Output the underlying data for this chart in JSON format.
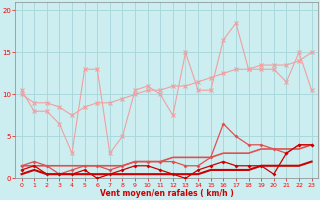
{
  "x": [
    0,
    1,
    2,
    3,
    4,
    5,
    6,
    7,
    8,
    9,
    10,
    11,
    12,
    13,
    14,
    15,
    16,
    17,
    18,
    19,
    20,
    21,
    22,
    23
  ],
  "line1": [
    10.5,
    8.0,
    8.0,
    6.5,
    3.0,
    13.0,
    13.0,
    3.0,
    5.0,
    10.5,
    11.0,
    10.0,
    7.5,
    15.0,
    10.5,
    10.5,
    16.5,
    18.5,
    13.0,
    13.0,
    13.0,
    11.5,
    15.0,
    10.5
  ],
  "line2": [
    10.0,
    9.0,
    9.0,
    8.5,
    7.5,
    8.5,
    9.0,
    9.0,
    9.5,
    10.0,
    10.5,
    10.5,
    11.0,
    11.0,
    11.5,
    12.0,
    12.5,
    13.0,
    13.0,
    13.5,
    13.5,
    13.5,
    14.0,
    15.0
  ],
  "line3": [
    1.5,
    2.0,
    1.5,
    0.5,
    1.0,
    1.5,
    1.5,
    1.0,
    1.5,
    2.0,
    2.0,
    2.0,
    2.0,
    1.5,
    1.5,
    2.5,
    6.5,
    5.0,
    4.0,
    4.0,
    3.5,
    3.0,
    4.0,
    4.0
  ],
  "line4": [
    1.5,
    1.5,
    1.5,
    1.5,
    1.5,
    1.5,
    1.5,
    1.5,
    1.5,
    2.0,
    2.0,
    2.0,
    2.5,
    2.5,
    2.5,
    2.5,
    3.0,
    3.0,
    3.0,
    3.5,
    3.5,
    3.5,
    3.5,
    4.0
  ],
  "line5": [
    1.0,
    1.5,
    0.5,
    0.5,
    0.5,
    1.0,
    0.0,
    0.5,
    1.0,
    1.5,
    1.5,
    1.0,
    0.5,
    0.0,
    1.0,
    1.5,
    2.0,
    1.5,
    1.5,
    1.5,
    0.5,
    3.0,
    4.0,
    4.0
  ],
  "line6": [
    0.5,
    1.0,
    0.5,
    0.5,
    0.5,
    0.5,
    0.5,
    0.5,
    0.5,
    0.5,
    0.5,
    0.5,
    0.5,
    0.5,
    0.5,
    1.0,
    1.0,
    1.0,
    1.0,
    1.5,
    1.5,
    1.5,
    1.5,
    2.0
  ],
  "bg_color": "#cceef0",
  "grid_color": "#aad8dc",
  "light_red": "#f0a0a0",
  "medium_red": "#e05050",
  "dark_red": "#cc0000",
  "xlabel": "Vent moyen/en rafales ( km/h )",
  "ylim": [
    0,
    21
  ],
  "xlim": [
    -0.5,
    23.5
  ],
  "yticks": [
    0,
    5,
    10,
    15,
    20
  ],
  "xticks": [
    0,
    1,
    2,
    3,
    4,
    5,
    6,
    7,
    8,
    9,
    10,
    11,
    12,
    13,
    14,
    15,
    16,
    17,
    18,
    19,
    20,
    21,
    22,
    23
  ]
}
